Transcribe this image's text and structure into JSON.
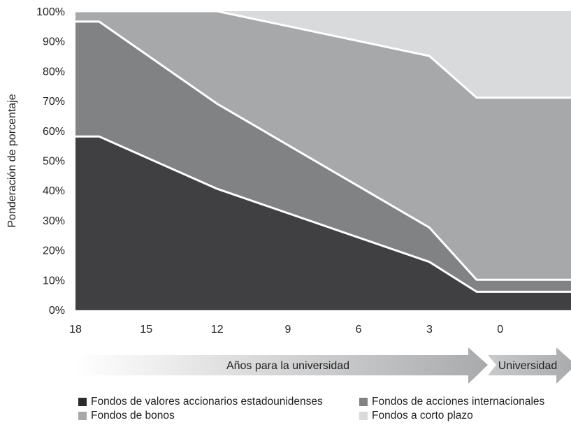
{
  "chart_data": {
    "type": "area",
    "stacked": true,
    "x": [
      18,
      17,
      12,
      3,
      1,
      0,
      -3
    ],
    "xticks": [
      "18",
      "15",
      "12",
      "9",
      "6",
      "3",
      "0"
    ],
    "ylabel": "Ponderación de porcentaje",
    "yticks": [
      "0%",
      "10%",
      "20%",
      "30%",
      "40%",
      "50%",
      "60%",
      "70%",
      "80%",
      "90%",
      "100%"
    ],
    "ylim": [
      0,
      100
    ],
    "series": [
      {
        "name": "Fondos de valores accionarios estadounidenses",
        "color": "#404042",
        "values": [
          58,
          58,
          40.5,
          16,
          6,
          6,
          6
        ]
      },
      {
        "name": "Fondos de acciones internacionales",
        "color": "#818284",
        "values": [
          38.5,
          38.5,
          28.5,
          11.5,
          4,
          4,
          4
        ]
      },
      {
        "name": "Fondos de bonos",
        "color": "#a7a8aa",
        "values": [
          3.5,
          3.5,
          31,
          57.5,
          61,
          61,
          61
        ]
      },
      {
        "name": "Fondos a corto plazo",
        "color": "#d9dadb",
        "values": [
          0,
          0,
          0,
          15,
          29,
          29,
          29
        ]
      }
    ],
    "arrows": {
      "years_label": "Años para la universidad",
      "college_label": "Universidad"
    },
    "legend_position": "bottom",
    "grid": false
  }
}
